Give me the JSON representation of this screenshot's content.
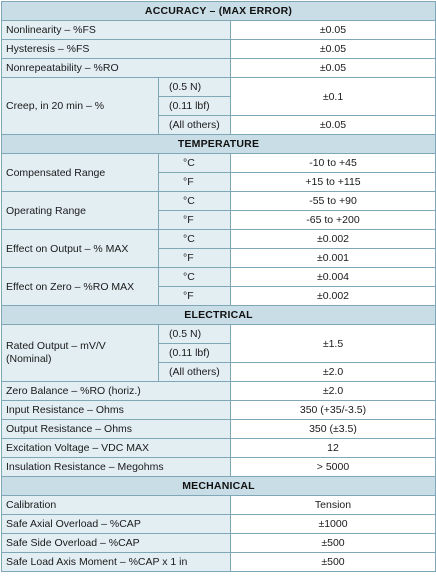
{
  "accuracy": {
    "title": "ACCURACY – (MAX ERROR)",
    "nonlinearity": {
      "label": "Nonlinearity – %FS",
      "value": "±0.05"
    },
    "hysteresis": {
      "label": "Hysteresis – %FS",
      "value": "±0.05"
    },
    "nonrepeatability": {
      "label": "Nonrepeatability – %RO",
      "value": "±0.05"
    },
    "creep": {
      "label": "Creep, in 20 min – %",
      "sub1": "(0.5 N)",
      "sub2": "(0.11 lbf)",
      "sub3": "(All others)",
      "value_small": "±0.1",
      "value_others": "±0.05"
    }
  },
  "temperature": {
    "title": "TEMPERATURE",
    "compensated": {
      "label": "Compensated Range",
      "unit_c": "°C",
      "value_c": "-10 to +45",
      "unit_f": "°F",
      "value_f": "+15 to +115"
    },
    "operating": {
      "label": "Operating Range",
      "unit_c": "°C",
      "value_c": "-55 to +90",
      "unit_f": "°F",
      "value_f": "-65 to +200"
    },
    "effect_output": {
      "label": "Effect on Output – % MAX",
      "unit_c": "°C",
      "value_c": "±0.002",
      "unit_f": "°F",
      "value_f": "±0.001"
    },
    "effect_zero": {
      "label": "Effect on Zero – %RO MAX",
      "unit_c": "°C",
      "value_c": "±0.004",
      "unit_f": "°F",
      "value_f": "±0.002"
    }
  },
  "electrical": {
    "title": "ELECTRICAL",
    "rated_output": {
      "label": "Rated Output – mV/V (Nominal)",
      "sub1": "(0.5 N)",
      "sub2": "(0.11 lbf)",
      "sub3": "(All others)",
      "value_small": "±1.5",
      "value_others": "±2.0"
    },
    "zero_balance": {
      "label": "Zero Balance – %RO (horiz.)",
      "value": "±2.0"
    },
    "input_resistance": {
      "label": "Input Resistance – Ohms",
      "value": "350 (+35/-3.5)"
    },
    "output_resistance": {
      "label": "Output Resistance – Ohms",
      "value": "350 (±3.5)"
    },
    "excitation": {
      "label": "Excitation Voltage – VDC MAX",
      "value": "12"
    },
    "insulation": {
      "label": "Insulation Resistance – Megohms",
      "value": "> 5000"
    }
  },
  "mechanical": {
    "title": "MECHANICAL",
    "calibration": {
      "label": "Calibration",
      "value": "Tension"
    },
    "axial_overload": {
      "label": "Safe Axial Overload – %CAP",
      "value": "±1000"
    },
    "side_overload": {
      "label": "Safe Side Overload – %CAP",
      "value": "±500"
    },
    "load_axis_moment": {
      "label": "Safe Load Axis Moment – %CAP x 1 in",
      "value": "±500"
    }
  }
}
